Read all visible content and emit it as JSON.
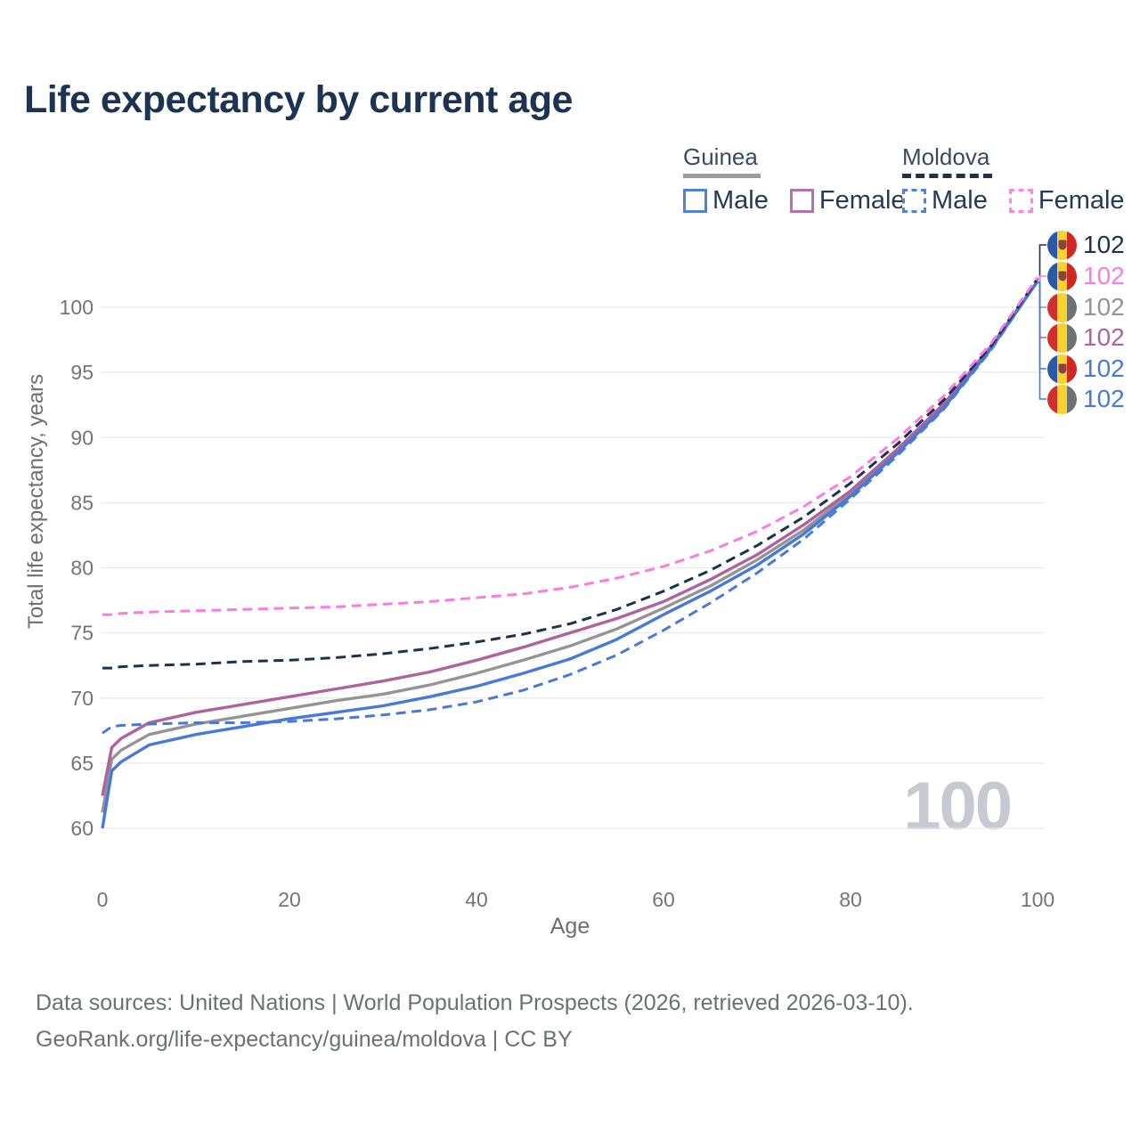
{
  "title": "Life expectancy by current age",
  "legend": {
    "groups": [
      {
        "label": "Guinea",
        "line_style": "solid",
        "underline_color": "#9a9aa0",
        "items": [
          {
            "label": "Male",
            "color": "#5180da"
          },
          {
            "label": "Female",
            "color": "#b273a8"
          }
        ]
      },
      {
        "label": "Moldova",
        "line_style": "dashed",
        "underline_color": "#1d3150",
        "items": [
          {
            "label": "Male",
            "color": "#5180da"
          },
          {
            "label": "Female",
            "color": "#fb86e3"
          }
        ]
      }
    ]
  },
  "watermark_age": "100",
  "footer": {
    "line1": "Data sources: United Nations | World Population Prospects (2026, retrieved 2026-03-10).",
    "line2": "GeoRank.org/life-expectancy/guinea/moldova | CC BY"
  },
  "chart_data": {
    "type": "line",
    "title": "Life expectancy by current age",
    "xlabel": "Age",
    "ylabel": "Total life expectancy, years",
    "x_ticks": [
      0,
      20,
      40,
      60,
      80,
      100
    ],
    "y_ticks": [
      60,
      65,
      70,
      75,
      80,
      85,
      90,
      95,
      100
    ],
    "xlim": [
      0,
      100
    ],
    "ylim": [
      58,
      103
    ],
    "grid": true,
    "legend_position": "top-right",
    "gridline_color": "#e9e9eb",
    "tick_color": "#747474",
    "ages": [
      0,
      1,
      2,
      5,
      10,
      15,
      20,
      25,
      30,
      35,
      40,
      45,
      50,
      55,
      60,
      65,
      70,
      75,
      80,
      85,
      90,
      95,
      100
    ],
    "series": [
      {
        "name": "Moldova",
        "sex": "both",
        "country": "moldova",
        "style": "dashed",
        "color": "#1d3150",
        "flag": "moldova",
        "end_label": "102",
        "values": [
          72.3,
          72.3,
          72.4,
          72.5,
          72.6,
          72.8,
          72.9,
          73.1,
          73.4,
          73.8,
          74.3,
          74.9,
          75.7,
          76.8,
          78.2,
          79.8,
          81.7,
          83.9,
          86.5,
          89.5,
          92.9,
          97.0,
          102.2
        ]
      },
      {
        "name": "Moldova Female",
        "sex": "female",
        "country": "moldova",
        "style": "dashed",
        "color": "#fb7ce1",
        "flag": "moldova",
        "end_label": "102",
        "values": [
          76.4,
          76.4,
          76.5,
          76.6,
          76.7,
          76.8,
          76.9,
          77.0,
          77.2,
          77.4,
          77.7,
          78.0,
          78.5,
          79.2,
          80.1,
          81.3,
          82.8,
          84.7,
          87.0,
          89.9,
          93.2,
          97.2,
          102.3
        ]
      },
      {
        "name": "Guinea",
        "sex": "both",
        "country": "guinea",
        "style": "solid",
        "color": "#949494",
        "flag": "guinea",
        "end_label": "102",
        "values": [
          61.2,
          65.3,
          66.0,
          67.2,
          68.0,
          68.6,
          69.2,
          69.8,
          70.3,
          71.0,
          71.9,
          72.9,
          74.0,
          75.3,
          76.9,
          78.6,
          80.6,
          82.9,
          85.7,
          88.9,
          92.4,
          96.9,
          102.0
        ]
      },
      {
        "name": "Guinea Female",
        "sex": "female",
        "country": "guinea",
        "style": "solid",
        "color": "#ae639e",
        "flag": "guinea",
        "end_label": "102",
        "values": [
          62.5,
          66.2,
          66.9,
          68.1,
          68.9,
          69.5,
          70.1,
          70.7,
          71.3,
          72.0,
          72.9,
          73.9,
          75.0,
          76.1,
          77.4,
          79.1,
          81.0,
          83.3,
          85.9,
          89.1,
          92.6,
          97.0,
          102.0
        ]
      },
      {
        "name": "Moldova Male",
        "sex": "male",
        "country": "moldova",
        "style": "dashed",
        "color": "#4879d9",
        "flag": "moldova",
        "end_label": "102",
        "values": [
          67.3,
          67.8,
          67.9,
          68.0,
          68.1,
          68.1,
          68.2,
          68.4,
          68.7,
          69.1,
          69.7,
          70.6,
          71.8,
          73.3,
          75.2,
          77.3,
          79.6,
          82.2,
          85.3,
          88.6,
          92.2,
          96.7,
          102.0
        ]
      },
      {
        "name": "Guinea Male",
        "sex": "male",
        "country": "guinea",
        "style": "solid",
        "color": "#4879d9",
        "flag": "guinea",
        "end_label": "102",
        "values": [
          60.0,
          64.4,
          65.1,
          66.4,
          67.2,
          67.8,
          68.4,
          68.9,
          69.4,
          70.1,
          70.9,
          71.9,
          73.0,
          74.5,
          76.4,
          78.2,
          80.2,
          82.6,
          85.5,
          88.8,
          92.3,
          96.8,
          102.0
        ]
      }
    ]
  }
}
